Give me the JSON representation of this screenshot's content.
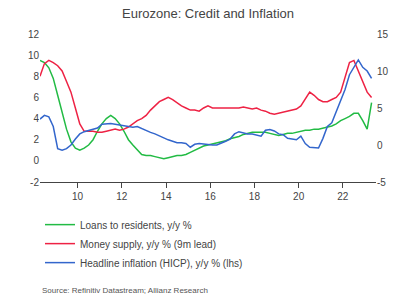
{
  "chart_data": {
    "type": "line",
    "title": "Eurozone: Credit and Inflation",
    "annotations": [
      "Source: Refinitiv Datastream; Allianz Research"
    ],
    "x": [
      2008.3,
      2008.5,
      2008.7,
      2008.9,
      2009.1,
      2009.3,
      2009.5,
      2009.7,
      2009.9,
      2010.1,
      2010.3,
      2010.5,
      2010.7,
      2010.9,
      2011.1,
      2011.3,
      2011.5,
      2011.7,
      2011.9,
      2012.1,
      2012.3,
      2012.5,
      2012.7,
      2012.9,
      2013.1,
      2013.3,
      2013.5,
      2013.7,
      2013.9,
      2014.1,
      2014.3,
      2014.5,
      2014.7,
      2014.9,
      2015.1,
      2015.3,
      2015.5,
      2015.7,
      2015.9,
      2016.1,
      2016.3,
      2016.5,
      2016.7,
      2016.9,
      2017.1,
      2017.3,
      2017.5,
      2017.7,
      2017.9,
      2018.1,
      2018.3,
      2018.5,
      2018.7,
      2018.9,
      2019.1,
      2019.3,
      2019.5,
      2019.7,
      2019.9,
      2020.1,
      2020.3,
      2020.5,
      2020.7,
      2020.9,
      2021.1,
      2021.3,
      2021.5,
      2021.7,
      2021.9,
      2022.1,
      2022.3,
      2022.5,
      2022.7,
      2022.9,
      2023.1,
      2023.3
    ],
    "series": [
      {
        "name": "Loans to residents, y/y %",
        "color": "#22bb44",
        "values": [
          9.5,
          9.3,
          8.8,
          7.8,
          6.2,
          4.5,
          3.0,
          1.8,
          1.2,
          1.0,
          1.2,
          1.5,
          2.0,
          2.8,
          3.5,
          4.0,
          4.3,
          4.0,
          3.5,
          2.8,
          2.0,
          1.5,
          1.0,
          0.6,
          0.5,
          0.5,
          0.4,
          0.3,
          0.2,
          0.3,
          0.4,
          0.5,
          0.5,
          0.6,
          0.8,
          1.0,
          1.2,
          1.4,
          1.5,
          1.6,
          1.7,
          1.8,
          1.9,
          2.1,
          2.2,
          2.3,
          2.5,
          2.6,
          2.7,
          2.7,
          2.7,
          2.7,
          2.6,
          2.5,
          2.4,
          2.5,
          2.6,
          2.6,
          2.7,
          2.8,
          2.9,
          2.9,
          3.0,
          3.0,
          3.1,
          3.2,
          3.3,
          3.5,
          3.8,
          4.0,
          4.2,
          4.5,
          4.5,
          3.8,
          3.0,
          5.5
        ]
      },
      {
        "name": "Money supply, y/y % (9m lead)",
        "color": "#ee2244",
        "values": [
          8.0,
          9.2,
          9.5,
          9.3,
          9.0,
          8.5,
          7.5,
          6.5,
          5.0,
          3.5,
          2.8,
          2.8,
          2.8,
          2.7,
          2.7,
          2.8,
          2.9,
          3.0,
          2.9,
          3.0,
          3.2,
          3.5,
          3.8,
          4.0,
          4.3,
          4.8,
          5.2,
          5.6,
          5.8,
          6.0,
          5.8,
          5.5,
          5.2,
          5.0,
          4.8,
          4.8,
          4.7,
          5.0,
          5.2,
          5.0,
          5.0,
          5.0,
          5.0,
          5.0,
          5.0,
          5.0,
          5.1,
          5.0,
          4.9,
          5.0,
          4.8,
          4.7,
          4.5,
          4.4,
          4.5,
          4.6,
          4.7,
          4.8,
          4.9,
          5.2,
          5.8,
          6.5,
          6.2,
          5.8,
          5.6,
          5.6,
          5.8,
          6.0,
          6.5,
          8.0,
          9.3,
          9.5,
          8.5,
          7.5,
          6.5,
          6.0
        ]
      },
      {
        "name": "Headline inflation (HICP), y/y % (lhs)",
        "color": "#3366cc",
        "axis": "y2",
        "values": [
          3.5,
          4.0,
          3.8,
          2.5,
          -0.5,
          -0.7,
          -0.5,
          0.0,
          0.8,
          1.5,
          1.8,
          2.0,
          2.2,
          2.3,
          2.8,
          2.9,
          2.9,
          2.8,
          2.7,
          2.6,
          2.5,
          2.4,
          2.5,
          2.2,
          2.0,
          1.7,
          1.5,
          1.2,
          0.9,
          0.7,
          0.5,
          0.3,
          0.3,
          0.2,
          -0.3,
          0.1,
          0.2,
          0.1,
          0.1,
          0.0,
          0.0,
          0.2,
          0.5,
          0.8,
          1.5,
          1.8,
          1.6,
          1.5,
          1.5,
          1.3,
          1.2,
          2.0,
          2.1,
          1.9,
          1.5,
          1.4,
          0.9,
          0.8,
          0.7,
          1.2,
          0.2,
          -0.3,
          -0.3,
          -0.4,
          0.9,
          2.5,
          3.0,
          4.5,
          6.0,
          7.5,
          9.5,
          10.5,
          11.5,
          10.5,
          10.0,
          9.0
        ]
      }
    ],
    "xlim": [
      2008.3,
      2023.5
    ],
    "xticks": [
      {
        "value": 2010,
        "label": "10"
      },
      {
        "value": 2012,
        "label": "12"
      },
      {
        "value": 2014,
        "label": "14"
      },
      {
        "value": 2016,
        "label": "16"
      },
      {
        "value": 2018,
        "label": "18"
      },
      {
        "value": 2020,
        "label": "20"
      },
      {
        "value": 2022,
        "label": "22"
      }
    ],
    "ylim": [
      -2,
      12
    ],
    "yticks": [
      -2,
      0,
      2,
      4,
      6,
      8,
      10,
      12
    ],
    "y2lim": [
      -5,
      15
    ],
    "y2ticks": [
      -5,
      0,
      5,
      10,
      15
    ],
    "grid": false,
    "legend": "bottom"
  }
}
